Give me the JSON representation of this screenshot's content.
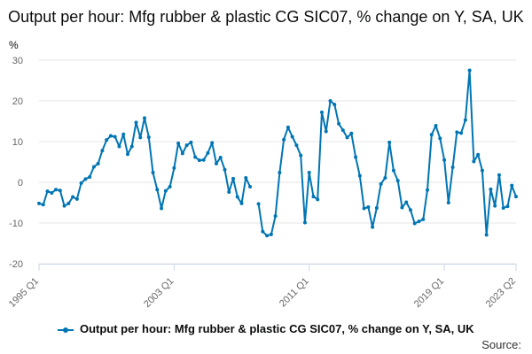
{
  "title": "Output per hour: Mfg rubber & plastic CG SIC07, % change on Y, SA, UK",
  "source_label": "Source:",
  "legend_label": "Output per hour: Mfg rubber & plastic CG SIC07, % change on Y, SA, UK",
  "colors": {
    "series": "#0075b4",
    "grid": "#e6e6e6",
    "axis": "#ccd6eb",
    "text": "#666666"
  },
  "chart_data": {
    "type": "line",
    "title": "Output per hour: Mfg rubber & plastic CG SIC07, % change on Y, SA, UK",
    "ylabel": "%",
    "xlabel": "",
    "ylim": [
      -20,
      30
    ],
    "yticks": [
      -20,
      -10,
      0,
      10,
      20,
      30
    ],
    "grid": true,
    "legend_position": "bottom",
    "x_tick_labels": [
      "1995 Q1",
      "2003 Q1",
      "2011 Q1",
      "2019 Q1",
      "2023 Q2"
    ],
    "x_tick_indices": [
      0,
      32,
      64,
      96,
      113
    ],
    "x_start": "1995 Q1",
    "x_end": "2023 Q2",
    "series": [
      {
        "name": "Output per hour: Mfg rubber & plastic CG SIC07, % change on Y, SA, UK",
        "values": [
          -5.2,
          -5.5,
          -2.2,
          -2.6,
          -1.8,
          -2.0,
          -5.8,
          -5.2,
          -3.6,
          -4.1,
          -0.2,
          0.8,
          1.3,
          3.8,
          4.6,
          7.8,
          10.4,
          11.4,
          11.2,
          8.8,
          11.8,
          6.9,
          8.8,
          14.7,
          11.0,
          15.8,
          11.1,
          2.4,
          -1.8,
          -6.4,
          -2.1,
          -1.1,
          3.5,
          9.6,
          7.1,
          9.1,
          9.8,
          6.2,
          5.4,
          5.5,
          7.2,
          9.7,
          4.6,
          6.1,
          3.1,
          -2.4,
          0.9,
          -3.6,
          -5.2,
          1.1,
          -1.1,
          null,
          -5.3,
          -12.1,
          -13.1,
          -12.8,
          -8.3,
          2.4,
          10.5,
          13.5,
          11.2,
          9.1,
          6.6,
          -9.9,
          2.4,
          -3.5,
          -4.2,
          17.2,
          12.5,
          20.0,
          19.1,
          14.4,
          12.8,
          11.0,
          12.0,
          6.2,
          1.6,
          -6.4,
          -6.1,
          -11.0,
          -6.3,
          -0.4,
          1.1,
          9.8,
          2.9,
          0.4,
          -6.2,
          -4.9,
          -6.8,
          -10.1,
          -9.6,
          -9.1,
          -1.9,
          11.7,
          13.9,
          10.8,
          5.5,
          -5.0,
          3.7,
          12.3,
          12.1,
          15.3,
          27.5,
          5.1,
          6.8,
          2.9,
          -12.9,
          -1.7,
          -5.8,
          1.8,
          -6.3,
          -5.9,
          -0.8,
          -3.5
        ]
      }
    ]
  }
}
